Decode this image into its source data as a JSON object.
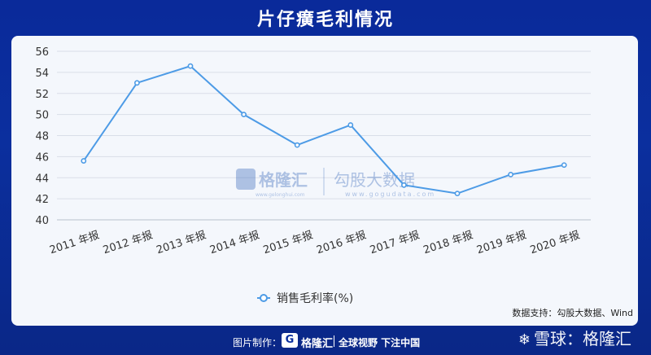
{
  "title": "片仔癀毛利情况",
  "source": "数据支持：勾股大数据、Wind",
  "watermark": {
    "logo_text": "格隆汇",
    "logo_sub": "www.gelonghui.com",
    "partner_text": "勾股大数据",
    "partner_sub": "www.gogudata.com"
  },
  "footer": {
    "credit": "图片制作：",
    "brand": "格隆汇",
    "slogan": "全球视野 下注中国"
  },
  "corner_watermark": "雪球：格隆汇",
  "colors": {
    "line": "#4d9be6",
    "grid": "#d9dee8",
    "axis_text": "#333333"
  },
  "chart_data": {
    "type": "line",
    "categories": [
      "2011 年报",
      "2012 年报",
      "2013 年报",
      "2014 年报",
      "2015 年报",
      "2016 年报",
      "2017 年报",
      "2018 年报",
      "2019 年报",
      "2020 年报"
    ],
    "series": [
      {
        "name": "销售毛利率(%)",
        "values": [
          45.6,
          53.0,
          54.6,
          50.0,
          47.1,
          49.0,
          43.3,
          42.5,
          44.3,
          45.2
        ]
      }
    ],
    "ylim": [
      40,
      56
    ],
    "yticks": [
      40,
      42,
      44,
      46,
      48,
      50,
      52,
      54,
      56
    ],
    "grid": true,
    "legend": "bottom-center"
  }
}
